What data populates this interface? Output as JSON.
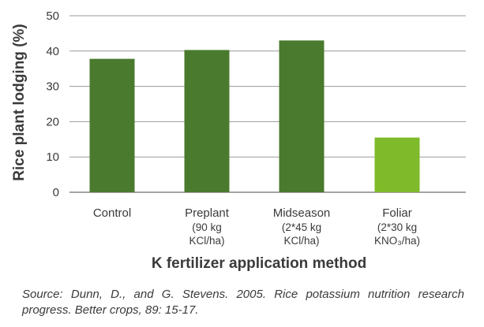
{
  "chart_data": {
    "type": "bar",
    "categories": [
      {
        "label": "Control",
        "sub": []
      },
      {
        "label": "Preplant",
        "sub": [
          "(90 kg",
          "KCl/ha)"
        ]
      },
      {
        "label": "Midseason",
        "sub": [
          "(2*45 kg",
          "KCl/ha)"
        ]
      },
      {
        "label": "Foliar",
        "sub": [
          "(2*30 kg",
          "KNO₃/ha)"
        ]
      }
    ],
    "values": [
      37.8,
      40.3,
      43.0,
      15.5
    ],
    "bar_colors": [
      "#4a7a2e",
      "#4a7a2e",
      "#4a7a2e",
      "#7fba2a"
    ],
    "ylabel": "Rice plant lodging (%)",
    "xlabel": "K fertilizer application method",
    "ylim": [
      0,
      50
    ],
    "yticks": [
      0,
      10,
      20,
      30,
      40,
      50
    ],
    "grid": true
  },
  "source": "Source: Dunn, D., and G. Stevens. 2005. Rice potassium nutrition research progress. Better crops, 89: 15-17."
}
